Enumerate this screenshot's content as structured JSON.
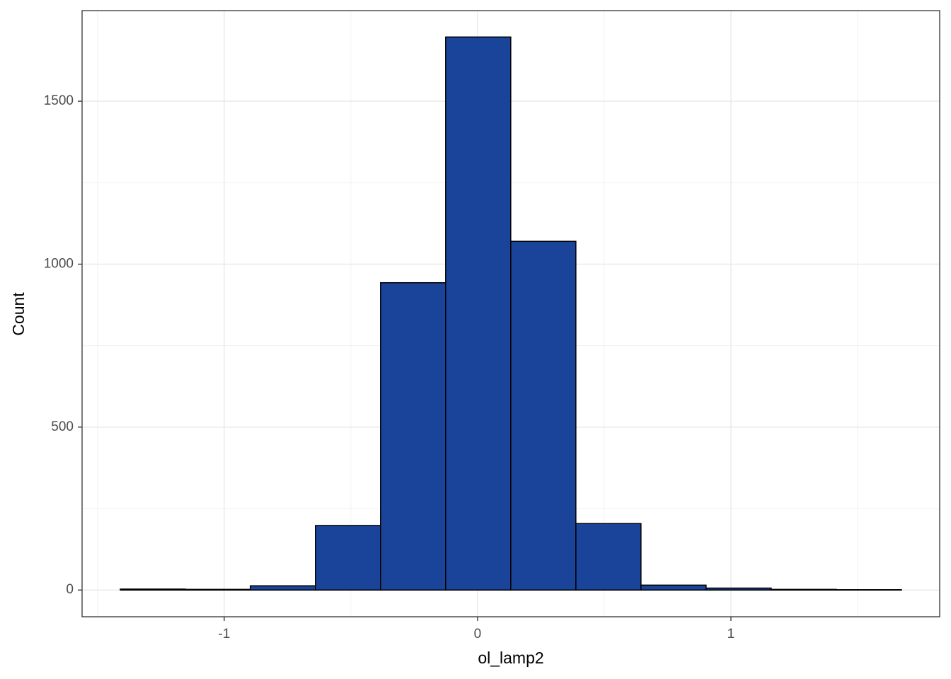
{
  "chart_data": {
    "type": "histogram",
    "xlabel": "ol_lamp2",
    "ylabel": "Count",
    "bins": [
      -1.41,
      -1.154,
      -0.897,
      -0.64,
      -0.383,
      -0.126,
      0.131,
      0.388,
      0.645,
      0.902,
      1.159,
      1.416,
      1.673
    ],
    "values": [
      3,
      2,
      13,
      198,
      943,
      1697,
      1070,
      204,
      15,
      6,
      2,
      1
    ],
    "color": "#1a4499",
    "edgecolor": "#000000",
    "xlim": [
      -1.561,
      1.824
    ],
    "ylim": [
      -82,
      1778
    ],
    "xticks": [
      -1,
      0,
      1
    ],
    "yticks": [
      0,
      500,
      1000,
      1500
    ],
    "x_minor_grid": [
      -1.5,
      -0.5,
      0.5,
      1.5
    ],
    "y_minor_grid": [
      250,
      750,
      1250
    ],
    "grid": true
  }
}
